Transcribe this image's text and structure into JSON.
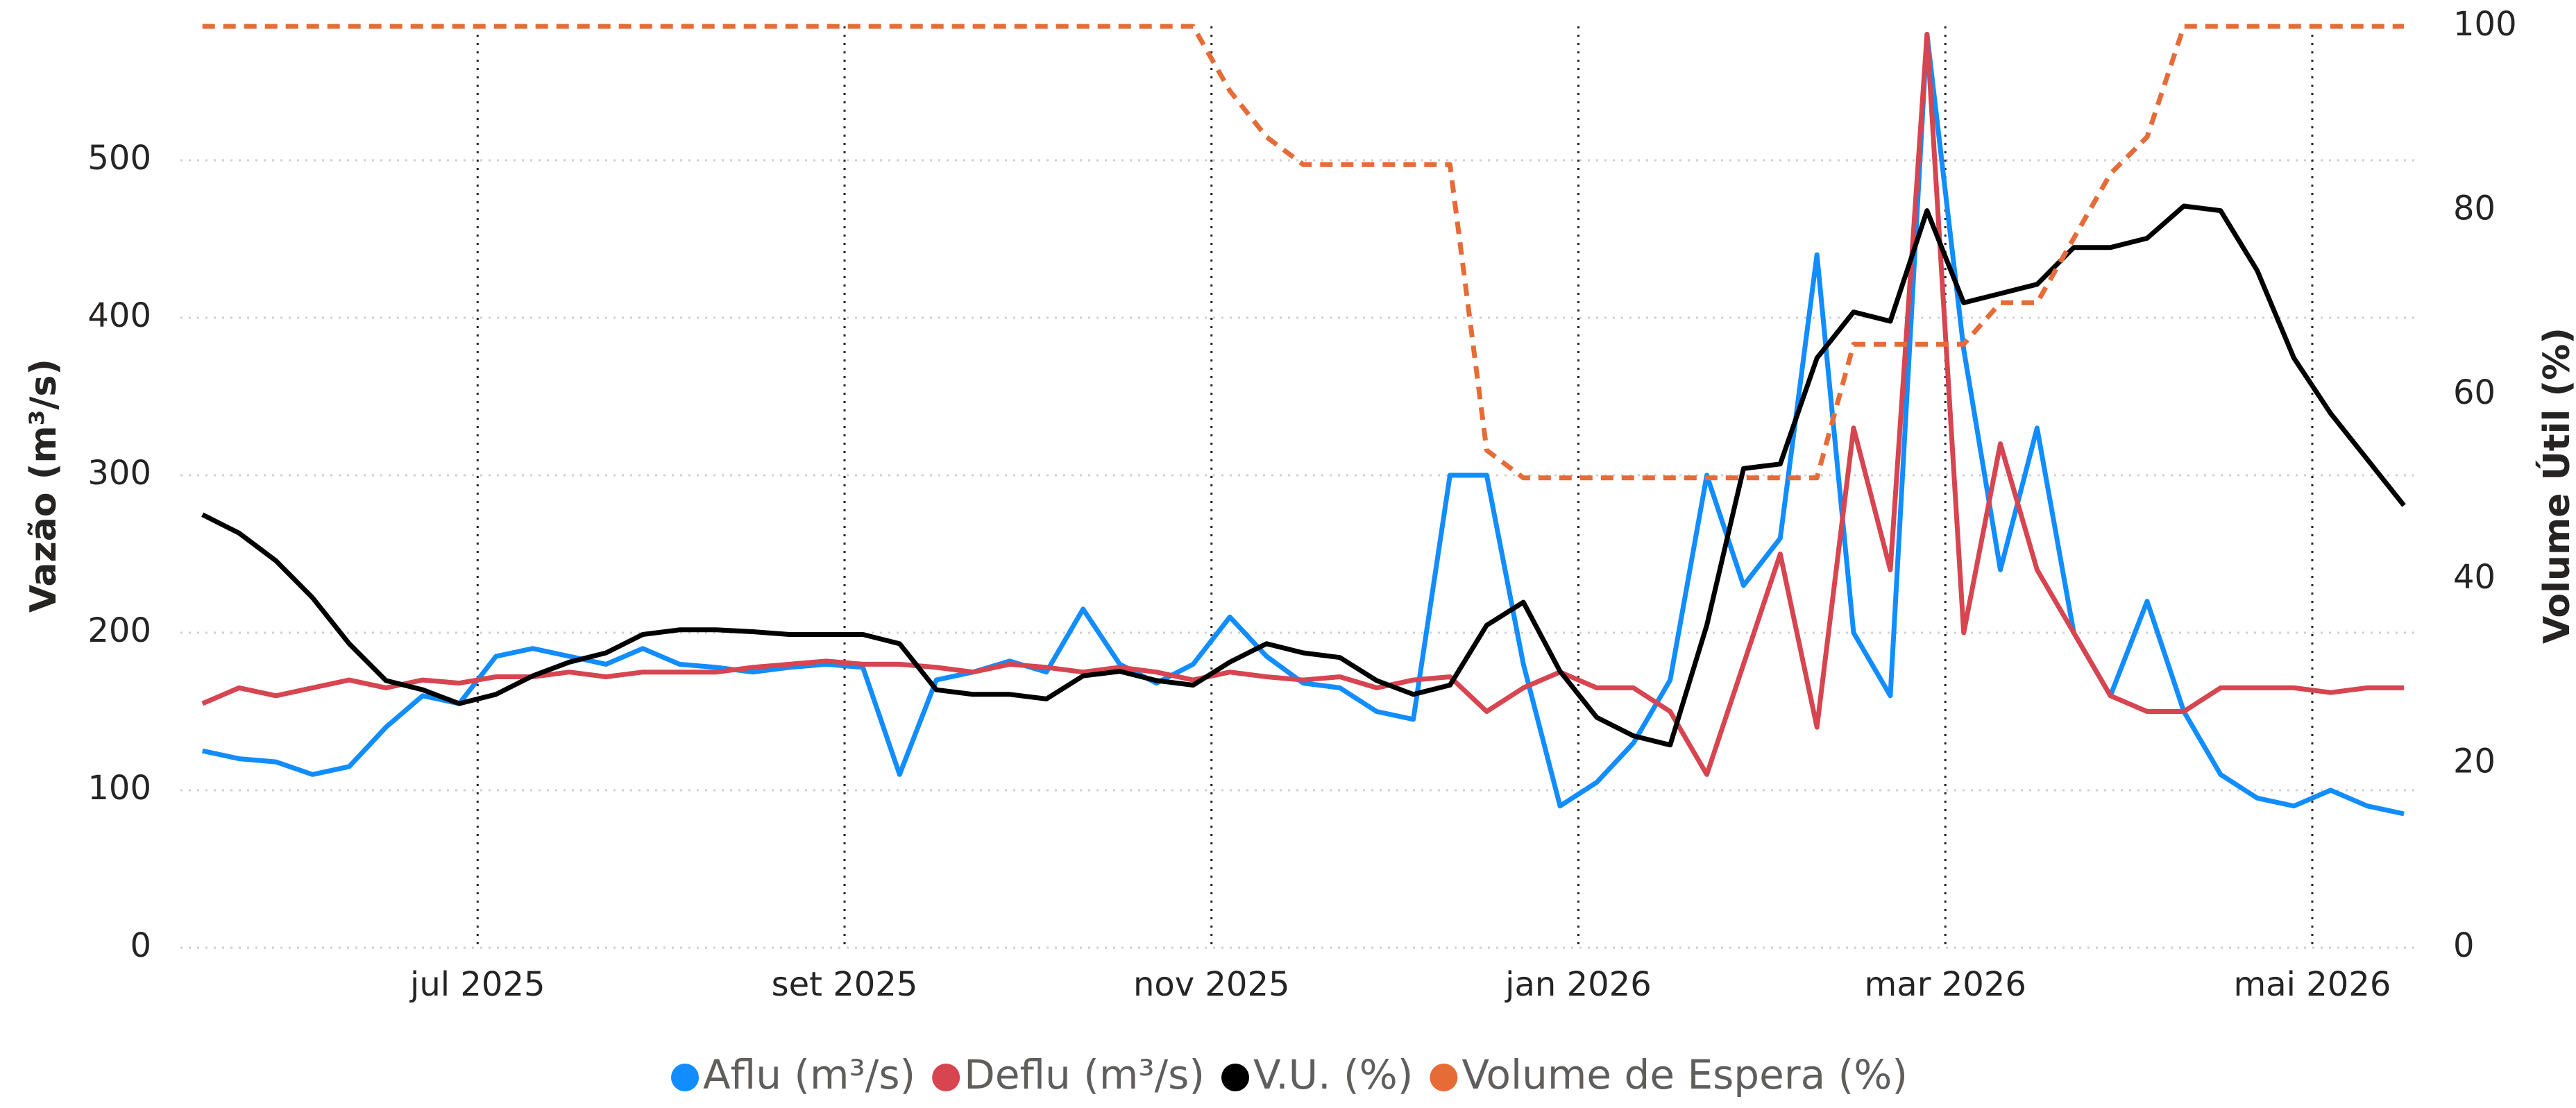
{
  "chart_data": {
    "type": "line",
    "ylabel": "Vazão (m³/s)",
    "y2label": "Volume Útil (%)",
    "x": [
      5.5,
      5.7,
      5.9,
      6.1,
      6.3,
      6.5,
      6.7,
      6.9,
      7.1,
      7.3,
      7.5,
      7.7,
      7.9,
      8.1,
      8.3,
      8.5,
      8.7,
      8.9,
      9.1,
      9.3,
      9.5,
      9.7,
      9.9,
      10.1,
      10.3,
      10.5,
      10.7,
      10.9,
      11.1,
      11.3,
      11.5,
      11.7,
      11.9,
      12.1,
      12.3,
      12.5,
      12.7,
      12.9,
      13.1,
      13.3,
      13.5,
      13.7,
      13.9,
      14.1,
      14.3,
      14.5,
      14.7,
      14.9,
      15.1,
      15.3,
      15.5,
      15.7,
      15.9,
      16.1,
      16.3,
      16.5,
      16.7,
      16.9,
      17.1,
      17.3,
      17.5
    ],
    "xlim": [
      5.38,
      17.56
    ],
    "xticks": [
      {
        "value": 7,
        "label": "jul 2025"
      },
      {
        "value": 9,
        "label": "set 2025"
      },
      {
        "value": 11,
        "label": "nov 2025"
      },
      {
        "value": 13,
        "label": "jan 2026"
      },
      {
        "value": 15,
        "label": "mar 2026"
      },
      {
        "value": 17,
        "label": "mai 2026"
      }
    ],
    "ylim": [
      0,
      585
    ],
    "yticks": [
      0,
      100,
      200,
      300,
      400,
      500
    ],
    "y2lim": [
      0,
      100
    ],
    "y2ticks": [
      0,
      20,
      40,
      60,
      80,
      100
    ],
    "grid": true,
    "series": [
      {
        "name": "Aflu (m³/s)",
        "color": "#118DFF",
        "values": [
          125,
          120,
          118,
          110,
          115,
          140,
          160,
          155,
          185,
          190,
          185,
          180,
          190,
          180,
          178,
          175,
          178,
          180,
          178,
          110,
          170,
          175,
          182,
          175,
          215,
          180,
          168,
          180,
          210,
          185,
          168,
          165,
          150,
          145,
          300,
          300,
          180,
          90,
          105,
          130,
          170,
          300,
          230,
          260,
          440,
          200,
          160,
          580,
          380,
          240,
          330,
          200,
          160,
          220,
          150,
          110,
          95,
          90,
          100,
          90,
          85
        ]
      },
      {
        "name": "Deflu (m³/s)",
        "color": "#D64550",
        "values": [
          155,
          165,
          160,
          165,
          170,
          165,
          170,
          168,
          172,
          172,
          175,
          172,
          175,
          175,
          175,
          178,
          180,
          182,
          180,
          180,
          178,
          175,
          180,
          178,
          175,
          178,
          175,
          170,
          175,
          172,
          170,
          172,
          165,
          170,
          172,
          150,
          165,
          175,
          165,
          165,
          150,
          110,
          180,
          250,
          140,
          330,
          240,
          580,
          200,
          320,
          240,
          200,
          160,
          150,
          150,
          165,
          165,
          165,
          162,
          165,
          165
        ]
      },
      {
        "name": "V.U. (%)",
        "color": "#000000",
        "axis": "y2",
        "values": [
          47,
          45,
          42,
          38,
          33,
          29,
          28,
          26.5,
          27.5,
          29.5,
          31,
          32,
          34,
          34.5,
          34.5,
          34.3,
          34,
          34,
          34,
          33,
          28,
          27.5,
          27.5,
          27,
          29.5,
          30,
          29,
          28.5,
          31,
          33,
          32,
          31.5,
          29,
          27.5,
          28.5,
          35,
          37.5,
          30,
          25,
          23,
          22,
          35,
          52,
          52.5,
          64,
          69,
          68,
          80,
          70,
          71,
          72,
          76,
          76,
          77,
          80.5,
          80,
          73.5,
          64,
          58,
          53,
          48
        ]
      },
      {
        "name": "Volume de Espera (%)",
        "color": "#E66C37",
        "axis": "y2",
        "dashed": true,
        "values": [
          100,
          100,
          100,
          100,
          100,
          100,
          100,
          100,
          100,
          100,
          100,
          100,
          100,
          100,
          100,
          100,
          100,
          100,
          100,
          100,
          100,
          100,
          100,
          100,
          100,
          100,
          100,
          100,
          93,
          88,
          85,
          85,
          85,
          85,
          85,
          54,
          51,
          51,
          51,
          51,
          51,
          51,
          51,
          51,
          51,
          65.5,
          65.5,
          65.5,
          65.5,
          70,
          70,
          77,
          84,
          88,
          100,
          100,
          100,
          100,
          100,
          100,
          100
        ]
      }
    ]
  }
}
